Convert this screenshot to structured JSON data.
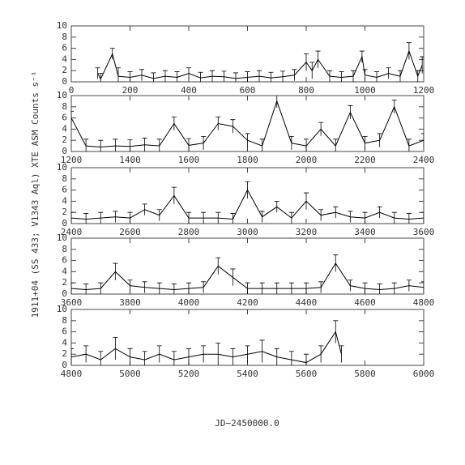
{
  "chart_data": [
    {
      "type": "line",
      "ylabel": "1911+04 (SS 433; V1343 Aql) XTE ASM Counts s⁻¹",
      "color": "#000000",
      "x": [
        90,
        100,
        140,
        160,
        200,
        240,
        280,
        320,
        360,
        400,
        440,
        480,
        520,
        560,
        600,
        640,
        680,
        720,
        760,
        800,
        820,
        840,
        880,
        920,
        960,
        990,
        1000,
        1040,
        1080,
        1120,
        1150,
        1180,
        1195
      ],
      "values": [
        1.5,
        0.5,
        5,
        1,
        0.8,
        1.2,
        0.6,
        1,
        0.8,
        1.5,
        0.7,
        1,
        0.9,
        0.6,
        0.8,
        1,
        0.7,
        0.9,
        1.2,
        3.5,
        2,
        4,
        1,
        0.8,
        1,
        4.5,
        1.2,
        0.8,
        1.5,
        1,
        5.5,
        1,
        3
      ],
      "errors": [
        1,
        1,
        1,
        1.5,
        1,
        1,
        1,
        1,
        1,
        1,
        1,
        1,
        1,
        1,
        1,
        1,
        1,
        1,
        1,
        1.5,
        1.5,
        1.5,
        1,
        1,
        1,
        1,
        1,
        1,
        1,
        1,
        1.5,
        1,
        1.5
      ],
      "xlim": [
        0,
        1200
      ],
      "ylim": [
        0,
        10
      ],
      "xticks": [
        0,
        200,
        400,
        600,
        800,
        1000,
        1200
      ],
      "yticks": [
        0,
        2,
        4,
        6,
        8,
        10
      ]
    },
    {
      "type": "line",
      "color": "#000000",
      "x": [
        1200,
        1250,
        1300,
        1350,
        1400,
        1450,
        1500,
        1550,
        1600,
        1650,
        1700,
        1750,
        1800,
        1850,
        1900,
        1950,
        2000,
        2050,
        2100,
        2150,
        2200,
        2250,
        2300,
        2350,
        2400
      ],
      "values": [
        6,
        1,
        0.8,
        1,
        0.9,
        1.2,
        1,
        5,
        1.1,
        1.5,
        5,
        4.5,
        2,
        1,
        9,
        1.5,
        1,
        4,
        1,
        7,
        1.5,
        2,
        8,
        1,
        2
      ],
      "errors": [
        1.2,
        1.2,
        1.2,
        1.2,
        1.2,
        1.2,
        1.2,
        1.2,
        1.2,
        1.2,
        1.2,
        1.2,
        1.2,
        1.2,
        1.2,
        1.2,
        1.2,
        1.2,
        1.2,
        1.2,
        1.2,
        1.2,
        1.2,
        1.2,
        1.2
      ],
      "xlim": [
        1200,
        2400
      ],
      "ylim": [
        0,
        10
      ],
      "xticks": [
        1200,
        1400,
        1600,
        1800,
        2000,
        2200,
        2400
      ],
      "yticks": [
        0,
        2,
        4,
        6,
        8,
        10
      ]
    },
    {
      "type": "line",
      "color": "#000000",
      "x": [
        2400,
        2450,
        2500,
        2550,
        2600,
        2650,
        2700,
        2750,
        2800,
        2850,
        2900,
        2950,
        3000,
        3050,
        3100,
        3150,
        3200,
        3250,
        3300,
        3350,
        3400,
        3450,
        3500,
        3550,
        3600
      ],
      "values": [
        1,
        0.8,
        1,
        1.2,
        1,
        2.5,
        1.5,
        5,
        1,
        1,
        1,
        0.8,
        6,
        1.2,
        3,
        1,
        4,
        1.5,
        2,
        1.2,
        1,
        2,
        1,
        0.8,
        1
      ],
      "errors": [
        1,
        1,
        1,
        1,
        1,
        1,
        1,
        1.5,
        1,
        1,
        1,
        1,
        1.5,
        1,
        1,
        1,
        1.5,
        1,
        1,
        1,
        1,
        1,
        1,
        1,
        1
      ],
      "xlim": [
        2400,
        3600
      ],
      "ylim": [
        0,
        10
      ],
      "xticks": [
        2400,
        2600,
        2800,
        3000,
        3200,
        3400,
        3600
      ],
      "yticks": [
        0,
        2,
        4,
        6,
        8,
        10
      ]
    },
    {
      "type": "line",
      "color": "#000000",
      "x": [
        3600,
        3650,
        3700,
        3750,
        3800,
        3850,
        3900,
        3950,
        4000,
        4050,
        4100,
        4150,
        4200,
        4250,
        4300,
        4350,
        4400,
        4450,
        4500,
        4550,
        4600,
        4650,
        4700,
        4750,
        4800
      ],
      "values": [
        1,
        0.8,
        1,
        4,
        1.5,
        1.2,
        1,
        0.8,
        1,
        1.2,
        5,
        3,
        1,
        1,
        1,
        1,
        1,
        1.2,
        5.5,
        1.5,
        1,
        0.8,
        1,
        1.5,
        1.2
      ],
      "errors": [
        1,
        1,
        1,
        1.5,
        1,
        1,
        1,
        1,
        1,
        1,
        1.5,
        1.5,
        1,
        1,
        1,
        1,
        1,
        1,
        1.5,
        1,
        1,
        1,
        1,
        1,
        1
      ],
      "xlim": [
        3600,
        4800
      ],
      "ylim": [
        0,
        10
      ],
      "xticks": [
        3600,
        3800,
        4000,
        4200,
        4400,
        4600,
        4800
      ],
      "yticks": [
        0,
        2,
        4,
        6,
        8,
        10
      ]
    },
    {
      "type": "line",
      "xlabel": "JD−2450000.0",
      "color": "#000000",
      "x": [
        4800,
        4850,
        4900,
        4950,
        5000,
        5050,
        5100,
        5150,
        5200,
        5250,
        5300,
        5350,
        5400,
        5450,
        5500,
        5550,
        5600,
        5650,
        5700,
        5720
      ],
      "values": [
        1.5,
        2,
        1,
        3,
        1.5,
        1,
        2,
        1,
        1.5,
        2,
        2,
        1.5,
        2,
        2.5,
        1.5,
        1,
        0.5,
        2,
        6,
        2
      ],
      "errors": [
        1.5,
        1.5,
        1.5,
        2,
        1.5,
        1.5,
        1.5,
        1.5,
        1.5,
        1.5,
        2,
        1.5,
        1.5,
        2,
        1.5,
        1.5,
        1.5,
        1.5,
        2,
        1.5
      ],
      "xlim": [
        4800,
        6000
      ],
      "ylim": [
        0,
        10
      ],
      "xticks": [
        4800,
        5000,
        5200,
        5400,
        5600,
        5800,
        6000
      ],
      "yticks": [
        0,
        2,
        4,
        6,
        8,
        10
      ]
    }
  ]
}
